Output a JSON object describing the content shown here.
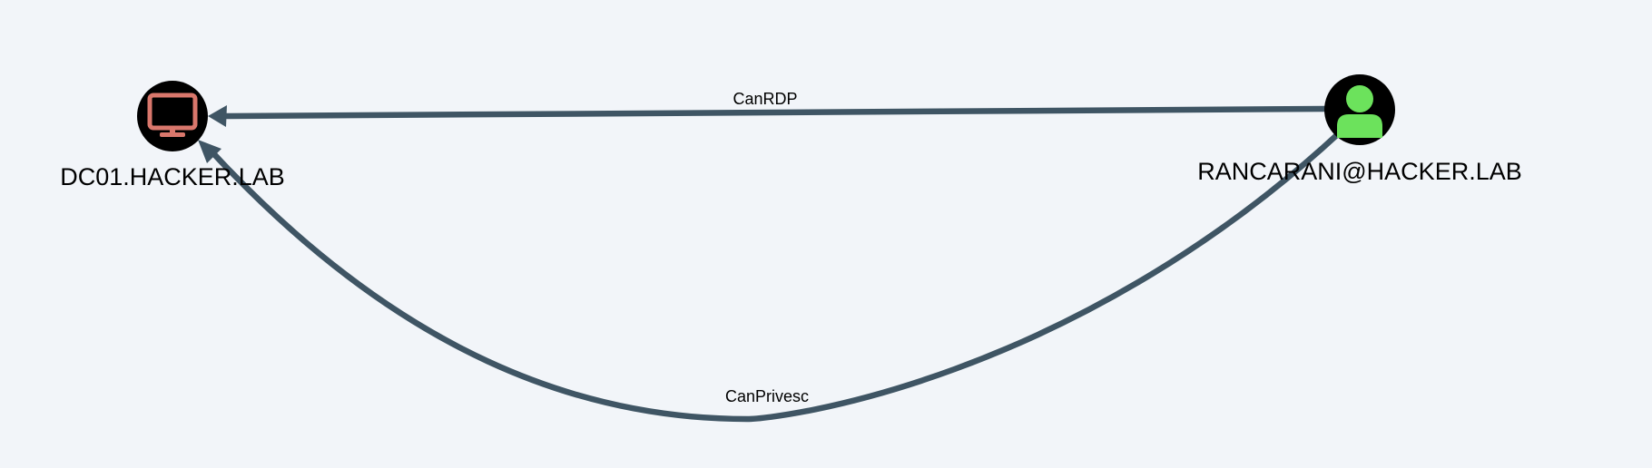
{
  "graph": {
    "background": "#f2f5f9",
    "edge_color": "#3f5564",
    "node_circle_color": "#000000",
    "nodes": {
      "computer": {
        "label": "DC01.HACKER.LAB",
        "type": "Computer",
        "icon": "monitor-icon",
        "icon_color": "#d9776c"
      },
      "user": {
        "label": "RANCARANI@HACKER.LAB",
        "type": "User",
        "icon": "user-icon",
        "icon_color": "#6ce25c"
      }
    },
    "edges": [
      {
        "label": "CanRDP",
        "from": "RANCARANI@HACKER.LAB",
        "to": "DC01.HACKER.LAB"
      },
      {
        "label": "CanPrivesc",
        "from": "RANCARANI@HACKER.LAB",
        "to": "DC01.HACKER.LAB"
      }
    ]
  }
}
